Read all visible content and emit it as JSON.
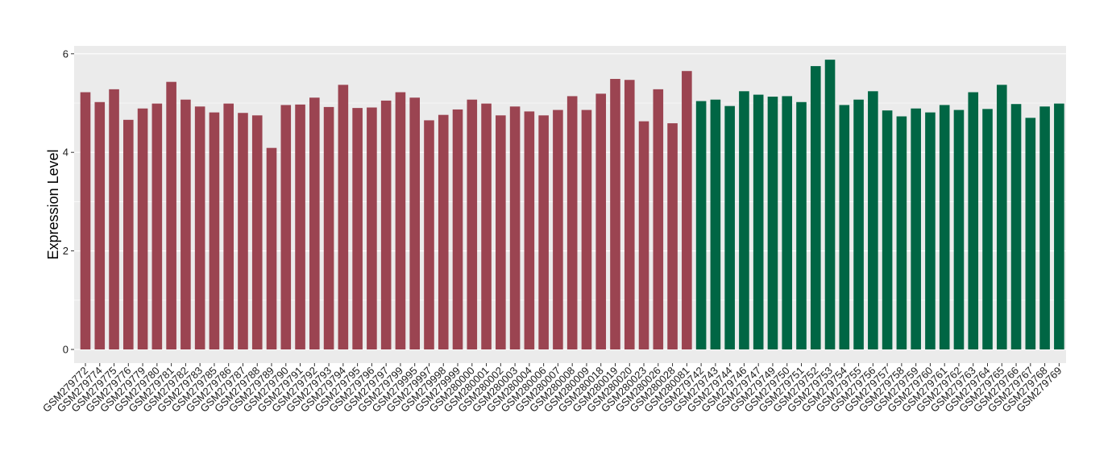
{
  "chart_data": {
    "type": "bar",
    "title": "",
    "xlabel": "",
    "ylabel": "Expression Level",
    "ylim": [
      0,
      6.2
    ],
    "yticks": [
      0,
      2,
      4,
      6
    ],
    "grid": true,
    "legend": "none",
    "colors": {
      "group_a": "#9b4451",
      "group_b": "#006644",
      "panel": "#ebebeb",
      "gridline": "#ffffff"
    },
    "categories": [
      "GSM279772",
      "GSM279774",
      "GSM279775",
      "GSM279776",
      "GSM279779",
      "GSM279780",
      "GSM279781",
      "GSM279782",
      "GSM279783",
      "GSM279785",
      "GSM279786",
      "GSM279787",
      "GSM279788",
      "GSM279789",
      "GSM279790",
      "GSM279791",
      "GSM279792",
      "GSM279793",
      "GSM279794",
      "GSM279795",
      "GSM279796",
      "GSM279797",
      "GSM279799",
      "GSM279995",
      "GSM279997",
      "GSM279998",
      "GSM279999",
      "GSM280000",
      "GSM280001",
      "GSM280002",
      "GSM280003",
      "GSM280004",
      "GSM280006",
      "GSM280007",
      "GSM280008",
      "GSM280009",
      "GSM280018",
      "GSM280019",
      "GSM280020",
      "GSM280023",
      "GSM280026",
      "GSM280028",
      "GSM280081",
      "GSM279742",
      "GSM279743",
      "GSM279744",
      "GSM279746",
      "GSM279747",
      "GSM279749",
      "GSM279750",
      "GSM279751",
      "GSM279752",
      "GSM279753",
      "GSM279754",
      "GSM279755",
      "GSM279756",
      "GSM279757",
      "GSM279758",
      "GSM279759",
      "GSM279760",
      "GSM279761",
      "GSM279762",
      "GSM279763",
      "GSM279764",
      "GSM279765",
      "GSM279766",
      "GSM279767",
      "GSM279768",
      "GSM279769"
    ],
    "values": [
      5.22,
      5.02,
      5.28,
      4.66,
      4.89,
      4.99,
      5.43,
      5.07,
      4.93,
      4.81,
      4.99,
      4.8,
      4.75,
      4.09,
      4.96,
      4.97,
      5.11,
      4.92,
      5.37,
      4.9,
      4.91,
      5.05,
      5.22,
      5.11,
      4.65,
      4.76,
      4.87,
      5.07,
      4.99,
      4.75,
      4.93,
      4.83,
      4.75,
      4.86,
      5.14,
      4.86,
      5.19,
      5.49,
      5.47,
      4.63,
      5.28,
      4.59,
      5.65,
      5.04,
      5.07,
      4.94,
      5.24,
      5.17,
      5.13,
      5.14,
      5.02,
      5.75,
      5.88,
      4.96,
      5.07,
      5.24,
      4.85,
      4.73,
      4.89,
      4.81,
      4.96,
      4.86,
      5.22,
      4.88,
      5.37,
      4.98,
      4.7,
      4.93,
      4.99
    ],
    "groups": [
      "a",
      "a",
      "a",
      "a",
      "a",
      "a",
      "a",
      "a",
      "a",
      "a",
      "a",
      "a",
      "a",
      "a",
      "a",
      "a",
      "a",
      "a",
      "a",
      "a",
      "a",
      "a",
      "a",
      "a",
      "a",
      "a",
      "a",
      "a",
      "a",
      "a",
      "a",
      "a",
      "a",
      "a",
      "a",
      "a",
      "a",
      "a",
      "a",
      "a",
      "a",
      "a",
      "a",
      "b",
      "b",
      "b",
      "b",
      "b",
      "b",
      "b",
      "b",
      "b",
      "b",
      "b",
      "b",
      "b",
      "b",
      "b",
      "b",
      "b",
      "b",
      "b",
      "b",
      "b",
      "b",
      "b",
      "b",
      "b",
      "b"
    ]
  }
}
